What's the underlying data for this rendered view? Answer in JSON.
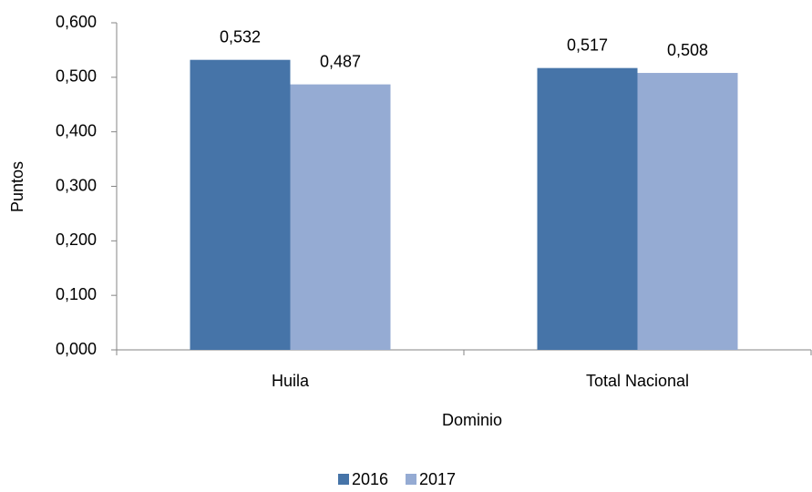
{
  "chart_data": {
    "type": "bar",
    "x_label": "Dominio",
    "y_label": "Puntos",
    "categories": [
      "Huila",
      "Total Nacional"
    ],
    "series": [
      {
        "name": "2016",
        "color": "#4674a8",
        "values": [
          0.532,
          0.517
        ],
        "value_labels": [
          "0,532",
          "0,517"
        ]
      },
      {
        "name": "2017",
        "color": "#95abd3",
        "values": [
          0.487,
          0.508
        ],
        "value_labels": [
          "0,487",
          "0,508"
        ]
      }
    ],
    "ylim": [
      0,
      0.6
    ],
    "yticks": [
      {
        "value": 0,
        "label": "0,000"
      },
      {
        "value": 0.1,
        "label": "0,100"
      },
      {
        "value": 0.2,
        "label": "0,200"
      },
      {
        "value": 0.3,
        "label": "0,300"
      },
      {
        "value": 0.4,
        "label": "0,400"
      },
      {
        "value": 0.5,
        "label": "0,500"
      },
      {
        "value": 0.6,
        "label": "0,600"
      }
    ],
    "grid": false,
    "legend": "bottom"
  }
}
